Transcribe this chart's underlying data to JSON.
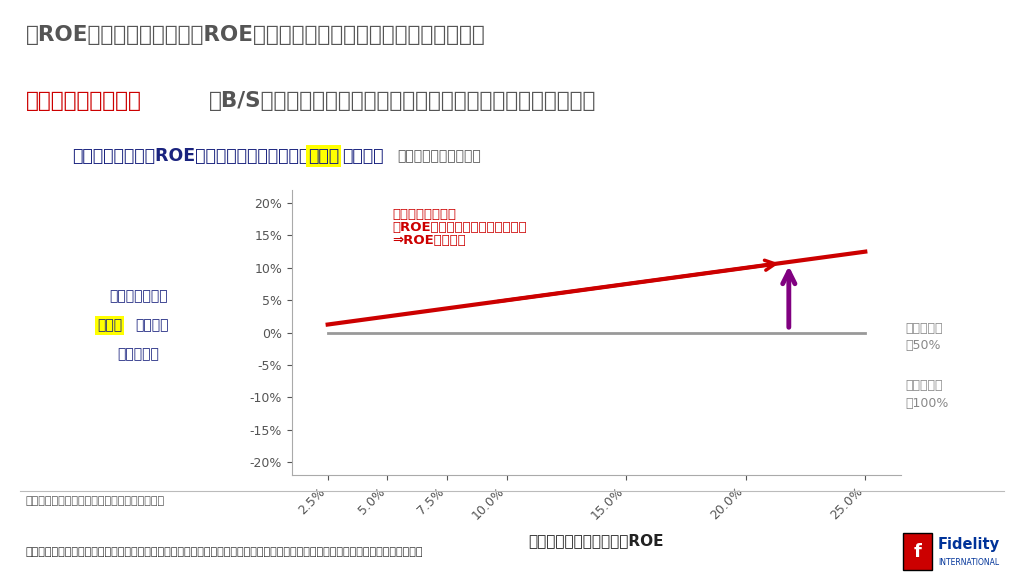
{
  "title_line1": "高ROEの米国企業は、（高ROEゆえ）純資産対比の利益水準が大きく、",
  "title_line1_color": "#555555",
  "title_line2_red": "株主還元を緩めると",
  "title_line2_rest": "、B/Sに新たに積む純資産の（純資産対比の）割合も高くなる。",
  "title_line2_color": "#555555",
  "title_red_color": "#cc0000",
  "subtitle_part1": "株主還元実施前のROE水準と、株主還元による",
  "subtitle_highlight": "純資産",
  "subtitle_part2": "の変化率",
  "subtitle_part3": "（利益は一定と仮定）",
  "subtitle_main_color": "#1a237e",
  "subtitle_small_color": "#555555",
  "subtitle_highlight_bg": "#ffff00",
  "xlabel": "株主還元を実施する前のROE",
  "ylabel_line1": "株主還元による",
  "ylabel_highlight": "純資産",
  "ylabel_line2": "の変化率",
  "ylabel_line3": "（理論値）",
  "ylabel_color": "#1a237e",
  "ylabel_highlight_bg": "#ffff00",
  "x_ticks": [
    0.025,
    0.05,
    0.075,
    0.1,
    0.15,
    0.2,
    0.25
  ],
  "x_tick_labels": [
    "2.5%",
    "5.0%",
    "7.5%",
    "10.0%",
    "15.0%",
    "20.0%",
    "25.0%"
  ],
  "y_ticks": [
    -0.2,
    -0.15,
    -0.1,
    -0.05,
    0.0,
    0.05,
    0.1,
    0.15,
    0.2
  ],
  "y_tick_labels": [
    "-20%",
    "-15%",
    "-10%",
    "-5%",
    "0%",
    "5%",
    "10%",
    "15%",
    "20%"
  ],
  "line_50pct_color": "#cc0000",
  "line_100pct_color": "#999999",
  "line_100pct_label1": "総還元性向",
  "line_100pct_label2": "＝100%",
  "line_50pct_label1": "総還元性向",
  "line_50pct_label2": "＝50%",
  "annotation_line1": "還元が緩い場合、",
  "annotation_line2": "高ROE企業ほど、純資産は増加。",
  "annotation_line3": "⇒ROEは低下。",
  "annotation_color": "#cc0000",
  "arrow_color": "#800080",
  "source_text": "（出所）フィデリティ・インスティテュート。",
  "disclaimer_text": "あらゆる記述やチャートは、例示目的もしくは過去の実績であり、将来の傾向、数値等を保証もしくは示唆するものではありません。",
  "bg_color": "#ffffff",
  "footer_bg_color": "#e8e8e8",
  "fidelity_red": "#cc0000",
  "fidelity_blue": "#003399"
}
